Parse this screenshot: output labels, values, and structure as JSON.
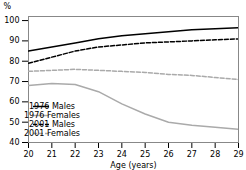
{
  "chart_data": {
    "type": "line",
    "x": [
      20,
      21,
      22,
      23,
      24,
      25,
      26,
      27,
      28,
      29
    ],
    "series": [
      {
        "name": "1976 Males",
        "color": "#000000",
        "line_style": "solid",
        "values": [
          85,
          87,
          89,
          91,
          92.5,
          93.5,
          94.5,
          95.5,
          96,
          96.5
        ]
      },
      {
        "name": "1976 Females",
        "color": "#aaaaaa",
        "line_style": "solid",
        "values": [
          68,
          69,
          68.5,
          65,
          59,
          54,
          50,
          48.5,
          47.5,
          46.5
        ]
      },
      {
        "name": "2001 Males",
        "color": "#000000",
        "line_style": "dashed",
        "values": [
          79,
          82,
          85,
          87,
          88,
          89,
          89.5,
          90,
          90.5,
          91
        ]
      },
      {
        "name": "2001 Females",
        "color": "#aaaaaa",
        "line_style": "dashed",
        "values": [
          75,
          75.5,
          76,
          75.5,
          75,
          74.5,
          73.5,
          73,
          72,
          71
        ]
      }
    ],
    "xlabel": "Age (years)",
    "ylabel": "%",
    "xlim": [
      20,
      29
    ],
    "ylim": [
      40,
      102
    ],
    "xticks": [
      20,
      21,
      22,
      23,
      24,
      25,
      26,
      27,
      28,
      29
    ],
    "yticks": [
      40,
      50,
      60,
      70,
      80,
      90,
      100
    ],
    "grid": false,
    "legend": "lower left"
  }
}
